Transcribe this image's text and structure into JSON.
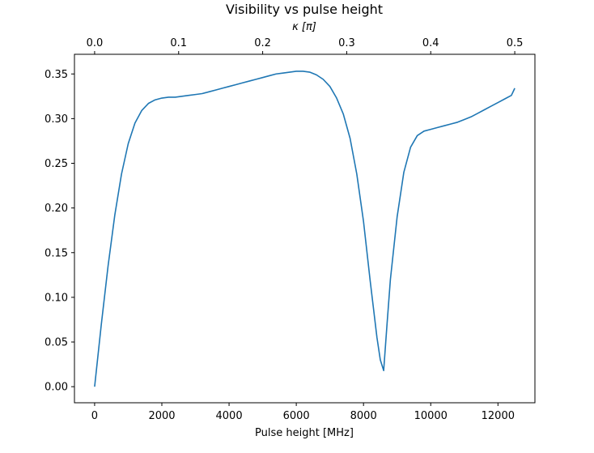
{
  "chart_data": {
    "type": "line",
    "title": "Visibility vs pulse height",
    "xlabel": "Pulse height [MHz]",
    "top_xlabel": "κ [π]",
    "xlim": [
      -600,
      13100
    ],
    "ylim": [
      -0.018,
      0.372
    ],
    "xticks": [
      0,
      2000,
      4000,
      6000,
      8000,
      10000,
      12000
    ],
    "yticks": [
      0.0,
      0.05,
      0.1,
      0.15,
      0.2,
      0.25,
      0.3,
      0.35
    ],
    "top_xticks": [
      0.0,
      0.1,
      0.2,
      0.3,
      0.4,
      0.5
    ],
    "top_x_max_value": 0.5,
    "top_x_max_at": 12500,
    "grid": false,
    "series": [
      {
        "color": "#1f77b4",
        "x": [
          0,
          200,
          400,
          600,
          800,
          1000,
          1200,
          1400,
          1600,
          1800,
          2000,
          2200,
          2400,
          2600,
          2800,
          3000,
          3200,
          3400,
          3600,
          3800,
          4000,
          4200,
          4400,
          4600,
          4800,
          5000,
          5200,
          5400,
          5600,
          5800,
          6000,
          6200,
          6400,
          6600,
          6800,
          7000,
          7200,
          7400,
          7600,
          7800,
          8000,
          8200,
          8400,
          8500,
          8600,
          8700,
          8800,
          9000,
          9200,
          9400,
          9600,
          9800,
          10000,
          10200,
          10400,
          10600,
          10800,
          11000,
          11200,
          11400,
          11600,
          11800,
          12000,
          12200,
          12400,
          12500
        ],
        "values": [
          0.0,
          0.07,
          0.135,
          0.192,
          0.238,
          0.272,
          0.295,
          0.309,
          0.317,
          0.321,
          0.323,
          0.324,
          0.324,
          0.325,
          0.326,
          0.327,
          0.328,
          0.33,
          0.332,
          0.334,
          0.336,
          0.338,
          0.34,
          0.342,
          0.344,
          0.346,
          0.348,
          0.35,
          0.351,
          0.352,
          0.353,
          0.353,
          0.352,
          0.349,
          0.344,
          0.336,
          0.323,
          0.305,
          0.278,
          0.238,
          0.185,
          0.118,
          0.055,
          0.03,
          0.018,
          0.07,
          0.12,
          0.19,
          0.24,
          0.268,
          0.281,
          0.286,
          0.288,
          0.29,
          0.292,
          0.294,
          0.296,
          0.299,
          0.302,
          0.306,
          0.31,
          0.314,
          0.318,
          0.322,
          0.326,
          0.334
        ]
      }
    ]
  }
}
